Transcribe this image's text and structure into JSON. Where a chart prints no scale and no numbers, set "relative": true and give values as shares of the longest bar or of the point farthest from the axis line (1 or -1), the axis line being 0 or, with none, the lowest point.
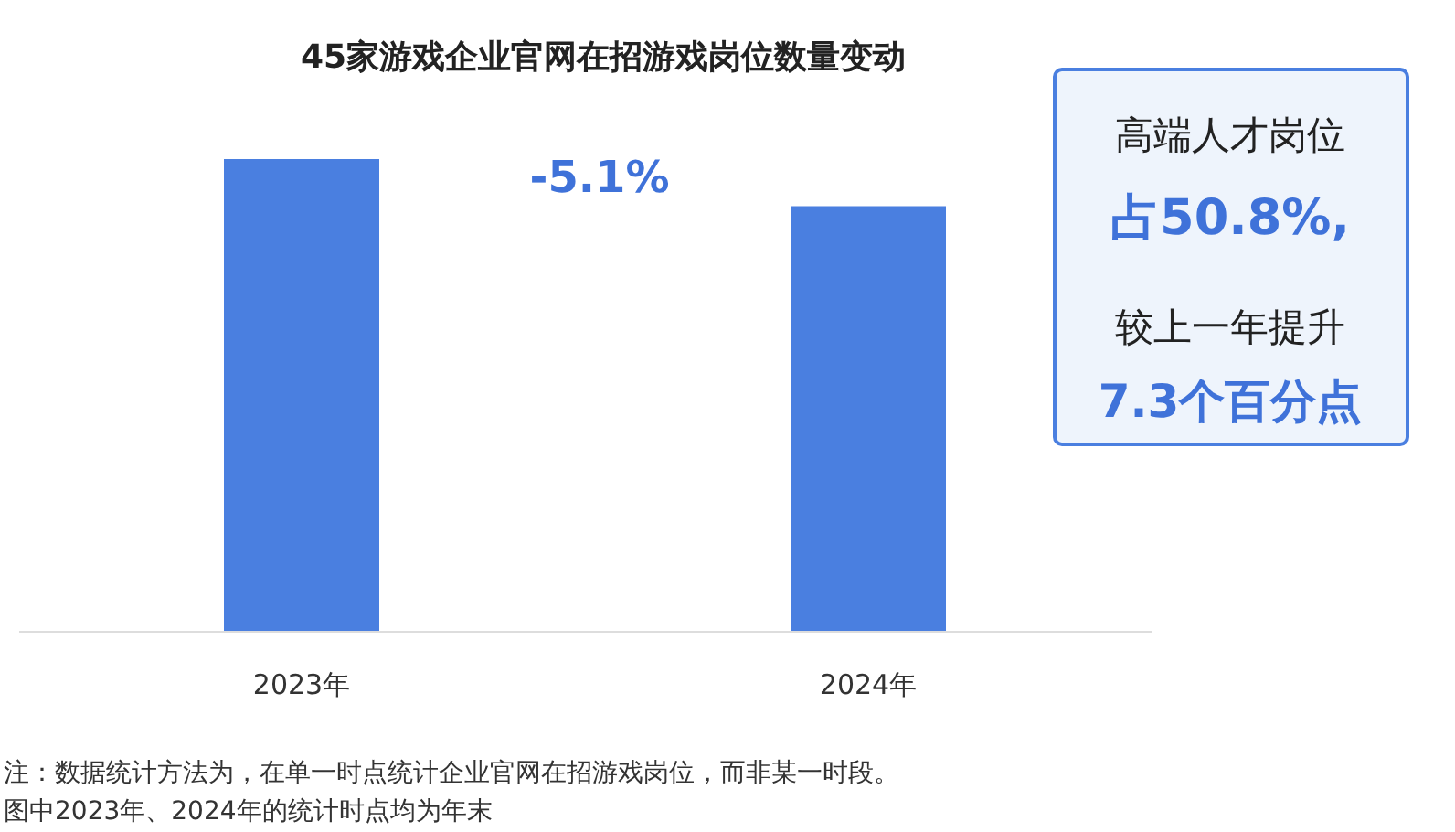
{
  "chart_data": {
    "type": "bar",
    "title": "45家游戏企业官网在招游戏岗位数量变动",
    "categories": [
      "2023年",
      "2024年"
    ],
    "values": [
      1,
      0.9
    ],
    "color": "#4a7fe0",
    "relative": true,
    "grid": false,
    "annotations": [
      "-5.1%",
      "高端人才岗位",
      "占50.8%,",
      "较上一年提升",
      "7.3个百分点",
      "注：数据统计方法为，在单一时点统计企业官网在招游戏岗位，而非某一时段。",
      "图中2023年、2024年的统计时点均为年末"
    ]
  }
}
